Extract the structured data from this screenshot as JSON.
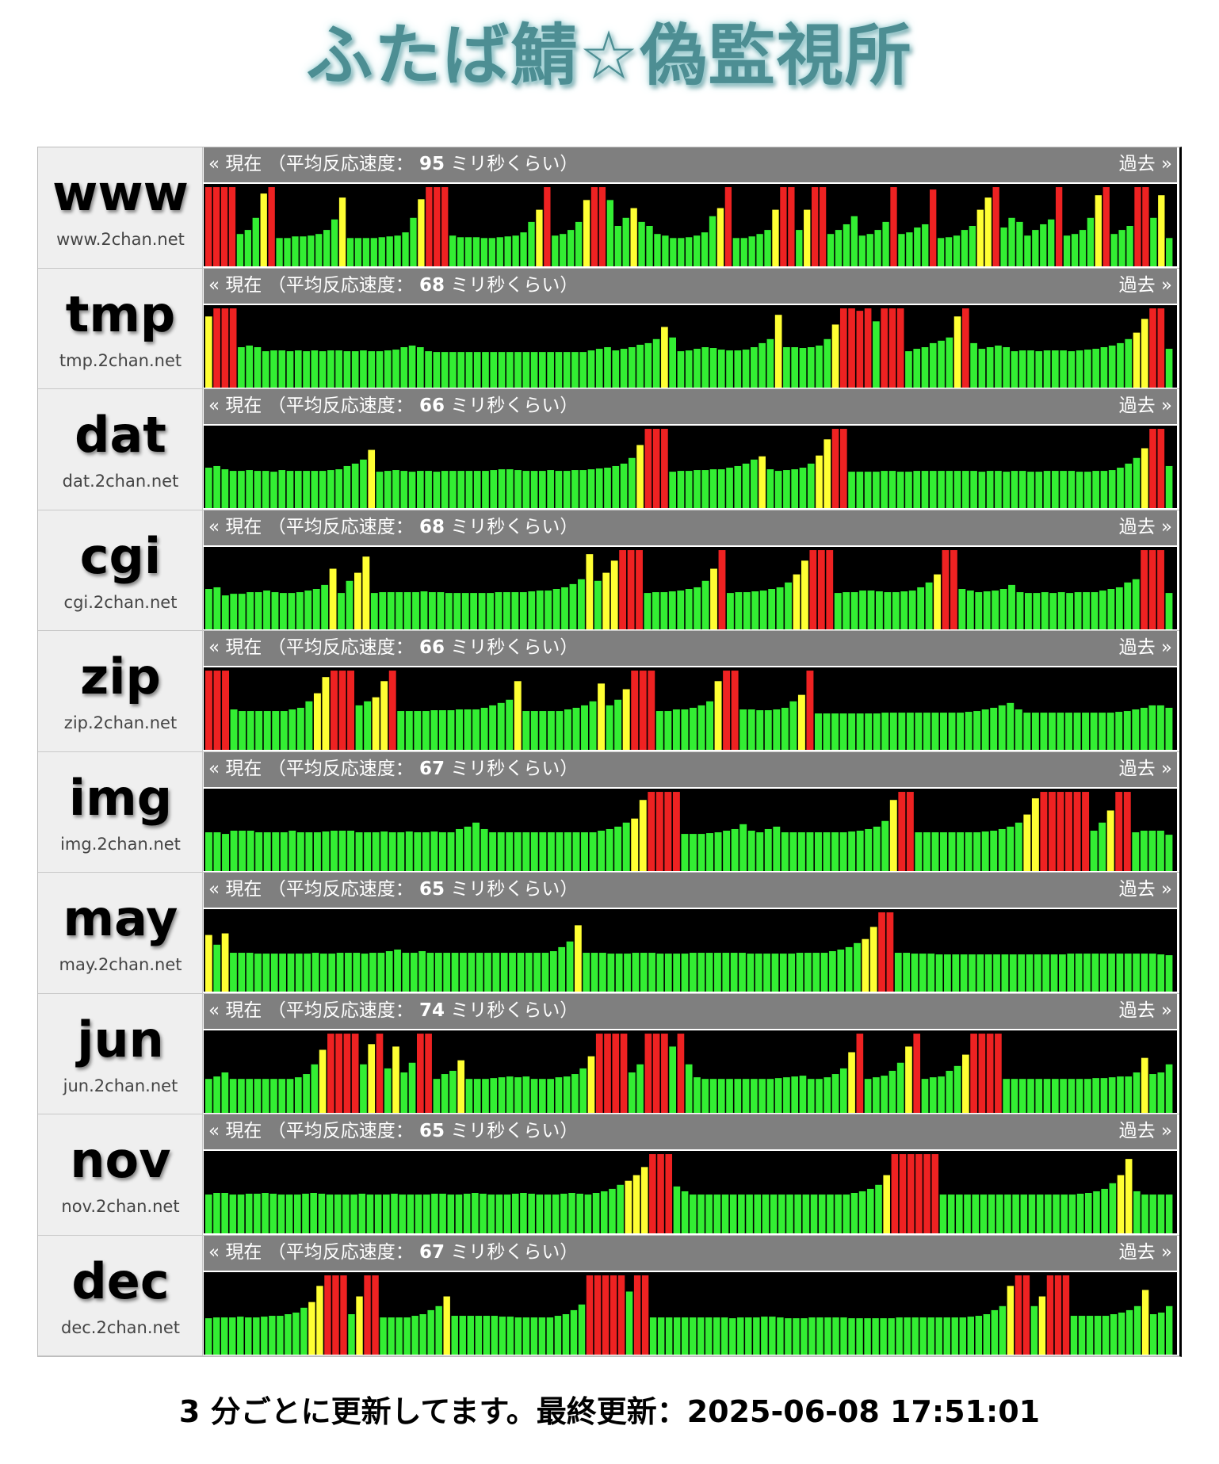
{
  "site_title": "ふたば鯖☆偽監視所",
  "labels": {
    "current": "« 現在",
    "avg_prefix": "（平均反応速度：",
    "avg_suffix": "ミリ秒くらい）",
    "past": "過去 »"
  },
  "footer": {
    "text": "3 分ごとに更新してます。最終更新：2025-06-08 17:51:01"
  },
  "colors": {
    "ok": "#33ee33",
    "warn": "#ffff33",
    "slow": "#ee2222",
    "graph_bg": "#000000"
  },
  "servers": [
    {
      "name": "www",
      "host": "www.2chan.net",
      "avg": "95",
      "levels": [
        0.98,
        0.98,
        0.98,
        0.98,
        0.4,
        0.45,
        0.6,
        0.9,
        0.98,
        0.35,
        0.35,
        0.37,
        0.37,
        0.38,
        0.4,
        0.45,
        0.58,
        0.85,
        0.35,
        0.35,
        0.35,
        0.35,
        0.36,
        0.37,
        0.38,
        0.42,
        0.6,
        0.83,
        0.98,
        0.98,
        0.98,
        0.38,
        0.36,
        0.36,
        0.36,
        0.35,
        0.35,
        0.36,
        0.37,
        0.38,
        0.42,
        0.55,
        0.7,
        0.98,
        0.38,
        0.4,
        0.45,
        0.55,
        0.82,
        0.98,
        0.98,
        0.82,
        0.5,
        0.6,
        0.72,
        0.55,
        0.5,
        0.4,
        0.38,
        0.35,
        0.35,
        0.36,
        0.38,
        0.42,
        0.62,
        0.72,
        0.98,
        0.35,
        0.35,
        0.37,
        0.4,
        0.45,
        0.7,
        0.98,
        0.98,
        0.45,
        0.7,
        0.98,
        0.98,
        0.4,
        0.45,
        0.52,
        0.62,
        0.38,
        0.4,
        0.45,
        0.55,
        0.98,
        0.4,
        0.42,
        0.48,
        0.52,
        0.95,
        0.35,
        0.36,
        0.38,
        0.45,
        0.5,
        0.7,
        0.85,
        0.98,
        0.48,
        0.6,
        0.55,
        0.38,
        0.45,
        0.52,
        0.58,
        0.98,
        0.38,
        0.4,
        0.45,
        0.6,
        0.88,
        0.98,
        0.4,
        0.45,
        0.5,
        0.98,
        0.98,
        0.6,
        0.88,
        0.35
      ]
    },
    {
      "name": "tmp",
      "host": "tmp.2chan.net",
      "avg": "68",
      "levels": [
        0.88,
        0.98,
        0.98,
        0.98,
        0.5,
        0.52,
        0.5,
        0.45,
        0.46,
        0.46,
        0.45,
        0.46,
        0.45,
        0.46,
        0.45,
        0.46,
        0.46,
        0.45,
        0.45,
        0.46,
        0.45,
        0.45,
        0.46,
        0.47,
        0.5,
        0.52,
        0.5,
        0.45,
        0.44,
        0.44,
        0.44,
        0.44,
        0.44,
        0.44,
        0.44,
        0.44,
        0.44,
        0.44,
        0.44,
        0.44,
        0.44,
        0.44,
        0.44,
        0.44,
        0.44,
        0.44,
        0.44,
        0.46,
        0.48,
        0.5,
        0.46,
        0.48,
        0.5,
        0.53,
        0.55,
        0.6,
        0.75,
        0.62,
        0.45,
        0.46,
        0.48,
        0.5,
        0.49,
        0.47,
        0.46,
        0.46,
        0.47,
        0.5,
        0.55,
        0.6,
        0.9,
        0.5,
        0.5,
        0.49,
        0.5,
        0.52,
        0.6,
        0.78,
        0.98,
        0.98,
        0.95,
        0.98,
        0.82,
        0.98,
        0.98,
        0.98,
        0.45,
        0.48,
        0.5,
        0.55,
        0.58,
        0.62,
        0.88,
        0.98,
        0.55,
        0.48,
        0.5,
        0.52,
        0.5,
        0.45,
        0.46,
        0.46,
        0.45,
        0.46,
        0.46,
        0.46,
        0.45,
        0.46,
        0.47,
        0.48,
        0.5,
        0.52,
        0.55,
        0.6,
        0.68,
        0.85,
        0.98,
        0.98,
        0.48
      ]
    },
    {
      "name": "dat",
      "host": "dat.2chan.net",
      "avg": "66",
      "levels": [
        0.5,
        0.52,
        0.48,
        0.46,
        0.46,
        0.47,
        0.46,
        0.46,
        0.45,
        0.47,
        0.46,
        0.46,
        0.46,
        0.46,
        0.46,
        0.47,
        0.48,
        0.52,
        0.55,
        0.6,
        0.72,
        0.45,
        0.46,
        0.47,
        0.46,
        0.45,
        0.46,
        0.46,
        0.45,
        0.46,
        0.46,
        0.46,
        0.46,
        0.46,
        0.46,
        0.47,
        0.48,
        0.48,
        0.47,
        0.46,
        0.46,
        0.46,
        0.47,
        0.46,
        0.46,
        0.47,
        0.47,
        0.48,
        0.49,
        0.5,
        0.52,
        0.55,
        0.62,
        0.78,
        0.98,
        0.98,
        0.98,
        0.45,
        0.46,
        0.46,
        0.47,
        0.47,
        0.48,
        0.48,
        0.5,
        0.52,
        0.55,
        0.6,
        0.64,
        0.48,
        0.46,
        0.47,
        0.48,
        0.5,
        0.55,
        0.65,
        0.85,
        0.98,
        0.98,
        0.45,
        0.45,
        0.45,
        0.45,
        0.46,
        0.46,
        0.45,
        0.45,
        0.46,
        0.46,
        0.46,
        0.46,
        0.46,
        0.46,
        0.46,
        0.46,
        0.45,
        0.46,
        0.46,
        0.45,
        0.46,
        0.46,
        0.45,
        0.45,
        0.46,
        0.46,
        0.46,
        0.46,
        0.45,
        0.45,
        0.46,
        0.46,
        0.47,
        0.5,
        0.55,
        0.62,
        0.74,
        0.98,
        0.98,
        0.52
      ]
    },
    {
      "name": "cgi",
      "host": "cgi.2chan.net",
      "avg": "68",
      "levels": [
        0.5,
        0.52,
        0.42,
        0.44,
        0.44,
        0.46,
        0.46,
        0.48,
        0.46,
        0.45,
        0.45,
        0.46,
        0.48,
        0.5,
        0.55,
        0.75,
        0.45,
        0.6,
        0.7,
        0.9,
        0.45,
        0.46,
        0.46,
        0.46,
        0.46,
        0.46,
        0.47,
        0.46,
        0.46,
        0.45,
        0.45,
        0.45,
        0.45,
        0.45,
        0.45,
        0.46,
        0.46,
        0.46,
        0.46,
        0.47,
        0.48,
        0.48,
        0.5,
        0.52,
        0.56,
        0.62,
        0.93,
        0.6,
        0.7,
        0.85,
        0.98,
        0.98,
        0.98,
        0.45,
        0.46,
        0.46,
        0.47,
        0.48,
        0.5,
        0.52,
        0.6,
        0.75,
        0.98,
        0.45,
        0.46,
        0.46,
        0.47,
        0.48,
        0.5,
        0.52,
        0.58,
        0.68,
        0.85,
        0.98,
        0.98,
        0.98,
        0.45,
        0.46,
        0.46,
        0.48,
        0.48,
        0.47,
        0.46,
        0.46,
        0.47,
        0.48,
        0.52,
        0.58,
        0.68,
        0.98,
        0.98,
        0.5,
        0.48,
        0.46,
        0.47,
        0.48,
        0.5,
        0.55,
        0.46,
        0.45,
        0.45,
        0.46,
        0.45,
        0.46,
        0.45,
        0.46,
        0.46,
        0.46,
        0.48,
        0.5,
        0.52,
        0.58,
        0.62,
        0.98,
        0.98,
        0.98,
        0.45
      ]
    },
    {
      "name": "zip",
      "host": "zip.2chan.net",
      "avg": "66",
      "levels": [
        0.98,
        0.98,
        0.98,
        0.5,
        0.48,
        0.48,
        0.48,
        0.48,
        0.48,
        0.48,
        0.5,
        0.52,
        0.6,
        0.7,
        0.9,
        0.98,
        0.98,
        0.98,
        0.55,
        0.6,
        0.65,
        0.85,
        0.98,
        0.48,
        0.48,
        0.48,
        0.48,
        0.49,
        0.49,
        0.49,
        0.5,
        0.5,
        0.5,
        0.52,
        0.55,
        0.58,
        0.62,
        0.85,
        0.48,
        0.48,
        0.48,
        0.48,
        0.48,
        0.5,
        0.52,
        0.55,
        0.6,
        0.82,
        0.55,
        0.62,
        0.75,
        0.98,
        0.98,
        0.98,
        0.48,
        0.48,
        0.5,
        0.5,
        0.52,
        0.55,
        0.6,
        0.85,
        0.98,
        0.98,
        0.5,
        0.5,
        0.49,
        0.49,
        0.5,
        0.52,
        0.6,
        0.68,
        0.98,
        0.45,
        0.45,
        0.45,
        0.45,
        0.45,
        0.45,
        0.45,
        0.45,
        0.46,
        0.46,
        0.46,
        0.46,
        0.46,
        0.46,
        0.46,
        0.46,
        0.46,
        0.46,
        0.47,
        0.48,
        0.5,
        0.52,
        0.55,
        0.58,
        0.5,
        0.46,
        0.46,
        0.46,
        0.46,
        0.46,
        0.46,
        0.46,
        0.46,
        0.46,
        0.46,
        0.46,
        0.47,
        0.48,
        0.5,
        0.52,
        0.55,
        0.55,
        0.52
      ]
    },
    {
      "name": "img",
      "host": "img.2chan.net",
      "avg": "67",
      "levels": [
        0.48,
        0.48,
        0.46,
        0.5,
        0.5,
        0.5,
        0.48,
        0.48,
        0.48,
        0.48,
        0.5,
        0.48,
        0.48,
        0.48,
        0.49,
        0.5,
        0.5,
        0.5,
        0.48,
        0.48,
        0.48,
        0.49,
        0.48,
        0.48,
        0.49,
        0.48,
        0.48,
        0.49,
        0.48,
        0.48,
        0.52,
        0.55,
        0.6,
        0.52,
        0.48,
        0.48,
        0.48,
        0.48,
        0.48,
        0.48,
        0.48,
        0.48,
        0.48,
        0.48,
        0.48,
        0.48,
        0.48,
        0.5,
        0.52,
        0.55,
        0.6,
        0.65,
        0.88,
        0.98,
        0.98,
        0.98,
        0.98,
        0.46,
        0.46,
        0.46,
        0.47,
        0.48,
        0.5,
        0.52,
        0.58,
        0.5,
        0.48,
        0.52,
        0.55,
        0.48,
        0.48,
        0.48,
        0.48,
        0.48,
        0.48,
        0.48,
        0.48,
        0.49,
        0.5,
        0.52,
        0.55,
        0.62,
        0.88,
        0.98,
        0.98,
        0.48,
        0.48,
        0.48,
        0.48,
        0.48,
        0.48,
        0.48,
        0.48,
        0.49,
        0.5,
        0.52,
        0.55,
        0.6,
        0.7,
        0.9,
        0.98,
        0.98,
        0.98,
        0.98,
        0.98,
        0.98,
        0.5,
        0.6,
        0.75,
        0.98,
        0.98,
        0.48,
        0.5,
        0.5,
        0.5,
        0.45
      ]
    },
    {
      "name": "may",
      "host": "may.2chan.net",
      "avg": "65",
      "levels": [
        0.7,
        0.58,
        0.72,
        0.48,
        0.48,
        0.48,
        0.47,
        0.47,
        0.47,
        0.47,
        0.47,
        0.47,
        0.47,
        0.48,
        0.47,
        0.47,
        0.48,
        0.48,
        0.48,
        0.47,
        0.48,
        0.48,
        0.5,
        0.52,
        0.48,
        0.48,
        0.5,
        0.48,
        0.48,
        0.48,
        0.48,
        0.48,
        0.48,
        0.48,
        0.48,
        0.48,
        0.48,
        0.48,
        0.48,
        0.48,
        0.48,
        0.48,
        0.5,
        0.55,
        0.62,
        0.82,
        0.48,
        0.48,
        0.48,
        0.47,
        0.47,
        0.47,
        0.48,
        0.48,
        0.48,
        0.47,
        0.47,
        0.47,
        0.47,
        0.48,
        0.48,
        0.48,
        0.48,
        0.48,
        0.48,
        0.48,
        0.47,
        0.47,
        0.47,
        0.47,
        0.47,
        0.47,
        0.48,
        0.48,
        0.48,
        0.48,
        0.5,
        0.52,
        0.55,
        0.6,
        0.65,
        0.8,
        0.98,
        0.98,
        0.48,
        0.48,
        0.47,
        0.47,
        0.47,
        0.46,
        0.46,
        0.46,
        0.46,
        0.46,
        0.46,
        0.46,
        0.46,
        0.46,
        0.46,
        0.46,
        0.46,
        0.46,
        0.46,
        0.46,
        0.46,
        0.47,
        0.47,
        0.47,
        0.47,
        0.47,
        0.47,
        0.47,
        0.47,
        0.47,
        0.47,
        0.47,
        0.46,
        0.45
      ]
    },
    {
      "name": "jun",
      "host": "jun.2chan.net",
      "avg": "74",
      "levels": [
        0.42,
        0.45,
        0.5,
        0.42,
        0.42,
        0.42,
        0.42,
        0.42,
        0.42,
        0.42,
        0.42,
        0.44,
        0.48,
        0.6,
        0.78,
        0.98,
        0.98,
        0.98,
        0.98,
        0.6,
        0.85,
        0.98,
        0.55,
        0.82,
        0.5,
        0.62,
        0.98,
        0.98,
        0.42,
        0.48,
        0.52,
        0.65,
        0.42,
        0.42,
        0.42,
        0.43,
        0.44,
        0.45,
        0.44,
        0.45,
        0.42,
        0.42,
        0.42,
        0.44,
        0.45,
        0.48,
        0.55,
        0.7,
        0.98,
        0.98,
        0.98,
        0.98,
        0.5,
        0.6,
        0.98,
        0.98,
        0.98,
        0.82,
        0.98,
        0.6,
        0.44,
        0.42,
        0.42,
        0.42,
        0.42,
        0.42,
        0.42,
        0.42,
        0.42,
        0.42,
        0.43,
        0.44,
        0.45,
        0.46,
        0.42,
        0.42,
        0.44,
        0.48,
        0.55,
        0.75,
        0.98,
        0.42,
        0.44,
        0.46,
        0.52,
        0.62,
        0.82,
        0.98,
        0.42,
        0.44,
        0.45,
        0.52,
        0.58,
        0.72,
        0.98,
        0.98,
        0.98,
        0.98,
        0.42,
        0.42,
        0.42,
        0.42,
        0.42,
        0.42,
        0.42,
        0.42,
        0.42,
        0.42,
        0.42,
        0.43,
        0.43,
        0.44,
        0.45,
        0.45,
        0.5,
        0.68,
        0.48,
        0.5,
        0.6
      ]
    },
    {
      "name": "nov",
      "host": "nov.2chan.net",
      "avg": "65",
      "levels": [
        0.48,
        0.5,
        0.5,
        0.48,
        0.48,
        0.49,
        0.49,
        0.5,
        0.49,
        0.48,
        0.48,
        0.48,
        0.49,
        0.5,
        0.49,
        0.48,
        0.48,
        0.48,
        0.48,
        0.49,
        0.48,
        0.48,
        0.48,
        0.49,
        0.48,
        0.48,
        0.48,
        0.48,
        0.49,
        0.49,
        0.48,
        0.48,
        0.49,
        0.5,
        0.49,
        0.48,
        0.48,
        0.48,
        0.49,
        0.5,
        0.49,
        0.48,
        0.48,
        0.48,
        0.49,
        0.5,
        0.49,
        0.48,
        0.5,
        0.52,
        0.55,
        0.6,
        0.65,
        0.72,
        0.82,
        0.98,
        0.98,
        0.98,
        0.58,
        0.52,
        0.48,
        0.48,
        0.48,
        0.48,
        0.48,
        0.48,
        0.48,
        0.48,
        0.48,
        0.48,
        0.48,
        0.48,
        0.48,
        0.48,
        0.48,
        0.48,
        0.48,
        0.48,
        0.48,
        0.48,
        0.5,
        0.52,
        0.55,
        0.6,
        0.72,
        0.98,
        0.98,
        0.98,
        0.98,
        0.98,
        0.98,
        0.48,
        0.48,
        0.48,
        0.48,
        0.48,
        0.48,
        0.48,
        0.48,
        0.48,
        0.48,
        0.48,
        0.48,
        0.48,
        0.48,
        0.48,
        0.48,
        0.48,
        0.49,
        0.5,
        0.52,
        0.55,
        0.62,
        0.72,
        0.92,
        0.52,
        0.48,
        0.48,
        0.48,
        0.48
      ]
    },
    {
      "name": "dec",
      "host": "dec.2chan.net",
      "avg": "67",
      "levels": [
        0.45,
        0.46,
        0.46,
        0.46,
        0.47,
        0.46,
        0.46,
        0.47,
        0.48,
        0.48,
        0.5,
        0.52,
        0.58,
        0.65,
        0.85,
        0.98,
        0.98,
        0.98,
        0.5,
        0.72,
        0.98,
        0.98,
        0.46,
        0.46,
        0.46,
        0.46,
        0.48,
        0.5,
        0.55,
        0.6,
        0.72,
        0.48,
        0.48,
        0.48,
        0.48,
        0.48,
        0.48,
        0.47,
        0.47,
        0.46,
        0.46,
        0.46,
        0.46,
        0.46,
        0.48,
        0.5,
        0.55,
        0.62,
        0.98,
        0.98,
        0.98,
        0.98,
        0.98,
        0.78,
        0.98,
        0.98,
        0.46,
        0.46,
        0.46,
        0.46,
        0.46,
        0.46,
        0.46,
        0.46,
        0.46,
        0.46,
        0.45,
        0.46,
        0.46,
        0.46,
        0.47,
        0.47,
        0.46,
        0.45,
        0.45,
        0.45,
        0.46,
        0.46,
        0.46,
        0.46,
        0.46,
        0.45,
        0.45,
        0.45,
        0.45,
        0.45,
        0.45,
        0.46,
        0.46,
        0.46,
        0.46,
        0.46,
        0.46,
        0.46,
        0.46,
        0.46,
        0.47,
        0.48,
        0.5,
        0.55,
        0.6,
        0.85,
        0.98,
        0.98,
        0.6,
        0.72,
        0.98,
        0.98,
        0.98,
        0.48,
        0.48,
        0.48,
        0.48,
        0.48,
        0.5,
        0.52,
        0.55,
        0.6,
        0.8,
        0.5,
        0.52,
        0.6
      ]
    }
  ]
}
